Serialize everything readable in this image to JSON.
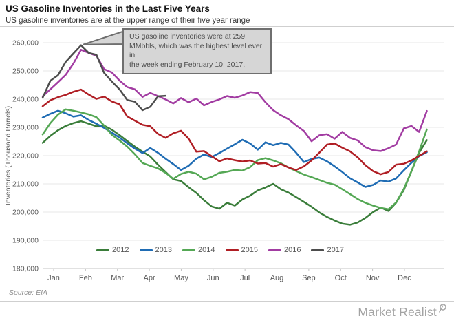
{
  "header": {
    "title": "US Gasoline Inventories in the Last Five Years",
    "subtitle": "US gasoline inventories are at the upper range  of their five year range"
  },
  "annotation": {
    "lines": [
      "US gasoline inventories were at 259",
      "MMbbls, which was the highest level ever in",
      "the week ending February  10, 2017."
    ]
  },
  "chart_data": {
    "type": "line",
    "title": "US Gasoline Inventories in the Last Five Years",
    "xlabel": "",
    "ylabel": "Inventories (Thousand  Barrels)",
    "unit": "thousand barrels",
    "frequency": "weekly",
    "ylim": [
      180000,
      260000
    ],
    "yticks": [
      180000,
      190000,
      200000,
      210000,
      220000,
      230000,
      240000,
      250000,
      260000
    ],
    "x_categories": [
      "Jan",
      "Feb",
      "Mar",
      "Apr",
      "May",
      "Jun",
      "Jul",
      "Aug",
      "Sep",
      "Oct",
      "Nov",
      "Dec"
    ],
    "grid": "horizontal",
    "legend_position": "bottom-inside",
    "series": [
      {
        "name": "2012",
        "color": "#3a7d3a",
        "values": [
          224500,
          227000,
          229000,
          230500,
          231500,
          232200,
          231300,
          230400,
          230600,
          229200,
          227300,
          225200,
          223200,
          221400,
          219700,
          216800,
          214200,
          211600,
          211000,
          208800,
          206800,
          204200,
          202000,
          201200,
          203300,
          202300,
          204500,
          205800,
          207700,
          208700,
          210000,
          208100,
          206900,
          205300,
          203600,
          201900,
          199900,
          198300,
          197000,
          195900,
          195500,
          196300,
          197900,
          200000,
          201600,
          200400,
          203300,
          207800,
          214500,
          221000,
          225500
        ]
      },
      {
        "name": "2013",
        "color": "#1f6cb4",
        "values": [
          233500,
          234800,
          235900,
          235000,
          233800,
          234300,
          232600,
          231300,
          229800,
          228200,
          226400,
          224400,
          222500,
          220900,
          222700,
          221000,
          218900,
          217000,
          214900,
          216400,
          218900,
          220400,
          219500,
          220900,
          222500,
          224000,
          225600,
          224300,
          222100,
          224700,
          223700,
          224500,
          223900,
          221000,
          217700,
          218800,
          219300,
          218000,
          216200,
          214200,
          212000,
          210500,
          208900,
          209600,
          211200,
          210800,
          211900,
          214800,
          217500,
          219800,
          221200
        ]
      },
      {
        "name": "2014",
        "color": "#55a855",
        "values": [
          227500,
          231500,
          234500,
          236400,
          235900,
          235300,
          234600,
          233600,
          230600,
          227400,
          225400,
          223200,
          220500,
          217400,
          216400,
          215500,
          213900,
          211800,
          213500,
          214300,
          213600,
          211600,
          212500,
          213900,
          214300,
          214900,
          214700,
          215900,
          218400,
          219100,
          218300,
          217300,
          215800,
          214500,
          213300,
          212400,
          211400,
          210400,
          209700,
          208100,
          206400,
          204600,
          203300,
          202300,
          201500,
          201000,
          203400,
          208200,
          214500,
          221500,
          229300
        ]
      },
      {
        "name": "2015",
        "color": "#b01e24",
        "values": [
          237500,
          239600,
          240700,
          241500,
          242600,
          243400,
          241600,
          240100,
          240900,
          239200,
          238200,
          233900,
          232400,
          230900,
          230400,
          227700,
          226300,
          227900,
          228800,
          226000,
          221400,
          221600,
          219800,
          218000,
          219000,
          218400,
          217900,
          218300,
          217200,
          217400,
          216100,
          217000,
          215800,
          214900,
          216200,
          218300,
          221000,
          223900,
          224300,
          222800,
          221500,
          219400,
          216600,
          214500,
          213400,
          214200,
          216800,
          217100,
          218300,
          219900,
          221500
        ]
      },
      {
        "name": "2016",
        "color": "#a23ca2",
        "values": [
          241000,
          243500,
          246000,
          248600,
          252600,
          257500,
          256400,
          255400,
          250600,
          249500,
          246600,
          244300,
          243500,
          240800,
          242200,
          241100,
          239900,
          238500,
          240400,
          238900,
          240200,
          237800,
          239000,
          239900,
          241100,
          240500,
          241300,
          242500,
          242200,
          238900,
          236100,
          234300,
          232900,
          230700,
          228700,
          225100,
          227200,
          227600,
          226000,
          228400,
          226300,
          225400,
          223000,
          221900,
          221600,
          222600,
          223900,
          229600,
          230500,
          228400,
          235800
        ]
      },
      {
        "name": "2017",
        "color": "#4d4d4d",
        "values": [
          240500,
          246500,
          248500,
          253200,
          256200,
          259100,
          256400,
          255700,
          249300,
          246300,
          243500,
          239700,
          239100,
          236100,
          237300,
          241000,
          241200
        ]
      }
    ],
    "annotation_target": {
      "series": "2017",
      "value": 259100
    }
  },
  "footer": {
    "source": "Source: EIA",
    "brand": "Market Realist"
  }
}
